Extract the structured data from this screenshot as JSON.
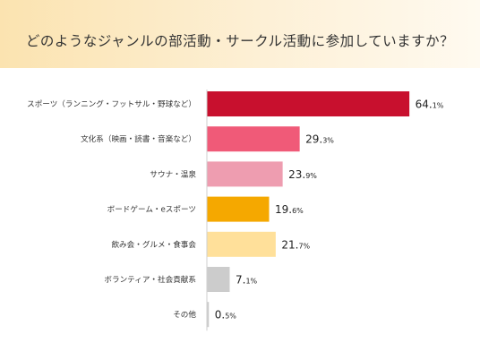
{
  "title": "どのようなジャンルの部活動・サークル活動に参加していますか？",
  "chart_data": {
    "type": "bar",
    "orientation": "horizontal",
    "title": "どのようなジャンルの部活動・サークル活動に参加していますか？",
    "categories": [
      "スポーツ（ランニング・フットサル・野球など）",
      "文化系（映画・読書・音楽など）",
      "サウナ・温泉",
      "ボードゲーム・eスポーツ",
      "飲み会・グルメ・食事会",
      "ボランティア・社会貢献系",
      "その他"
    ],
    "values": [
      64.1,
      29.3,
      23.9,
      19.6,
      21.7,
      7.1,
      0.5
    ],
    "unit": "%",
    "colors": [
      "#c8102e",
      "#f05a78",
      "#ee9db0",
      "#f5a800",
      "#ffe09a",
      "#cccccc",
      "#cccccc"
    ],
    "xlim": [
      0,
      100
    ],
    "grid": false,
    "legend": "none"
  }
}
